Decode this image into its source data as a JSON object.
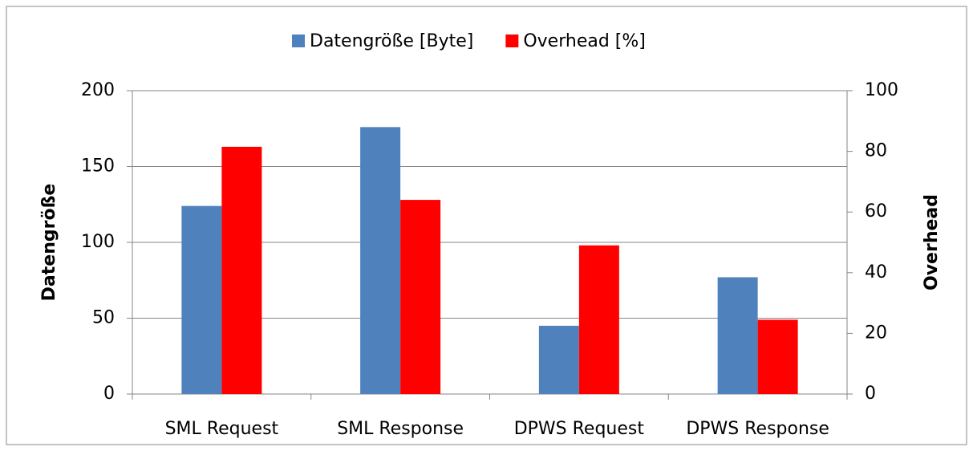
{
  "chart_data": {
    "type": "bar",
    "categories": [
      "SML Request",
      "SML Response",
      "DPWS Request",
      "DPWS Response"
    ],
    "series": [
      {
        "name": "Datengröße [Byte]",
        "color": "#4f81bd",
        "values": [
          124,
          176,
          45,
          77
        ]
      },
      {
        "name": "Overhead [%]",
        "color": "#ff0000",
        "axis": "y2",
        "values": [
          81.5,
          64,
          49,
          24.5
        ]
      }
    ],
    "ylabel": "Datengröße",
    "y2label": "Overhead",
    "ylim": [
      0,
      200
    ],
    "yticks": [
      0,
      50,
      100,
      150,
      200
    ],
    "y2lim": [
      0,
      100
    ],
    "y2ticks": [
      0,
      20,
      40,
      60,
      80,
      100
    ],
    "grid": true,
    "legend": "top"
  }
}
